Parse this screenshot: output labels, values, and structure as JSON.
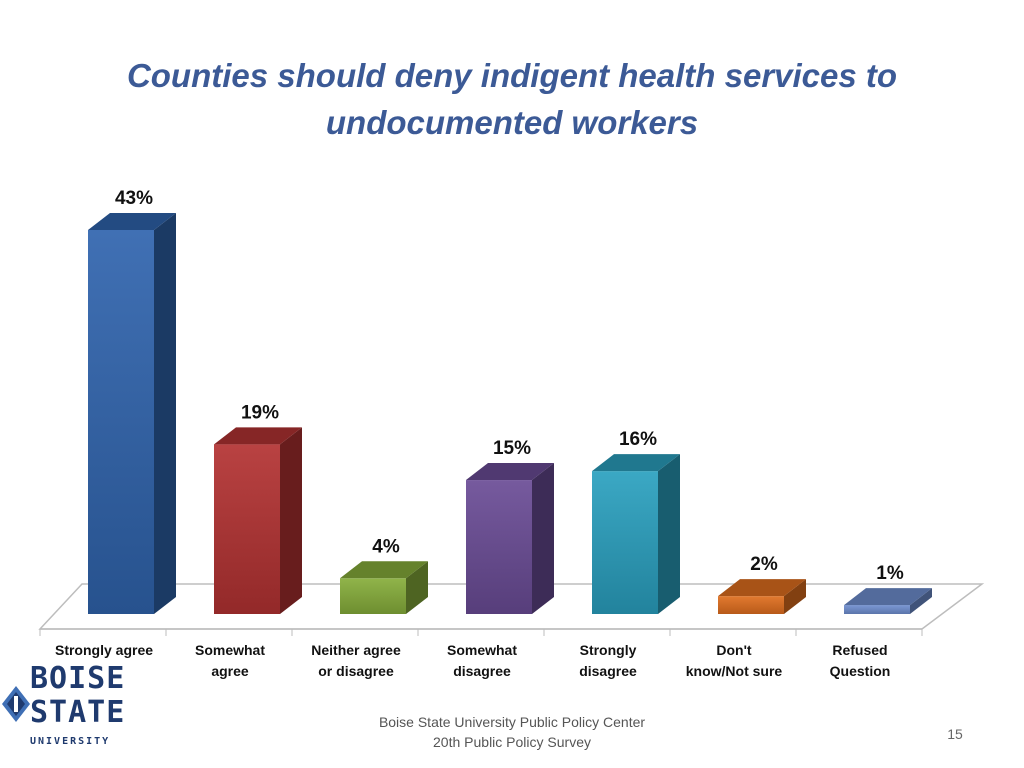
{
  "title_lines": [
    "Counties should deny indigent health services to",
    "undocumented workers"
  ],
  "chart_data": {
    "type": "bar",
    "categories": [
      [
        "Strongly agree"
      ],
      [
        "Somewhat",
        "agree"
      ],
      [
        "Neither agree",
        "or disagree"
      ],
      [
        "Somewhat",
        "disagree"
      ],
      [
        "Strongly",
        "disagree"
      ],
      [
        "Don't",
        "know/Not sure"
      ],
      [
        "Refused",
        "Question"
      ]
    ],
    "values": [
      43,
      19,
      4,
      15,
      16,
      2,
      1
    ],
    "data_labels": [
      "43%",
      "19%",
      "4%",
      "15%",
      "16%",
      "2%",
      "1%"
    ],
    "colors": [
      "#2f64ad",
      "#b33232",
      "#86ad3a",
      "#6a4c96",
      "#2aa0bf",
      "#e06e1e",
      "#6f8fd0"
    ],
    "ylim": [
      0,
      43
    ],
    "grid": false,
    "legend": "none"
  },
  "logo": {
    "line1": "BOISE",
    "line2": "STATE",
    "line3": "UNIVERSITY",
    "colors": [
      "#1f3a6e",
      "#3f6fb5"
    ]
  },
  "footer": {
    "line1": "Boise State University  Public Policy Center",
    "line2": "20th Public Policy Survey"
  },
  "slide_number": "15"
}
